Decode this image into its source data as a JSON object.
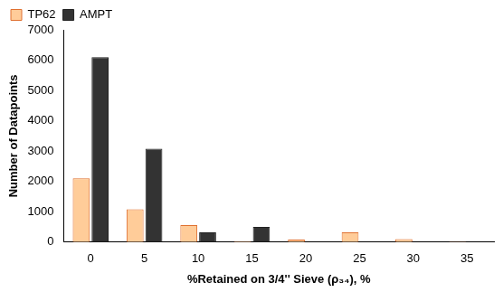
{
  "chart_data": {
    "type": "bar",
    "x_label": "%Retained on 3/4'' Sieve (ρ₃₄), %",
    "y_label": "Number of Datapoints",
    "categories": [
      "0",
      "5",
      "10",
      "15",
      "20",
      "25",
      "30",
      "35"
    ],
    "series": [
      {
        "name": "TP62",
        "color": "#FFCC99",
        "values": [
          2100,
          1080,
          560,
          30,
          80,
          320,
          100,
          20
        ]
      },
      {
        "name": "AMPT",
        "color": "#333333",
        "values": [
          6100,
          3080,
          320,
          500,
          0,
          0,
          0,
          0
        ]
      }
    ],
    "ylim": [
      0,
      7000
    ],
    "yticks": [
      0,
      1000,
      2000,
      3000,
      4000,
      5000,
      6000,
      7000
    ],
    "grid": false,
    "legend": "top-left"
  }
}
